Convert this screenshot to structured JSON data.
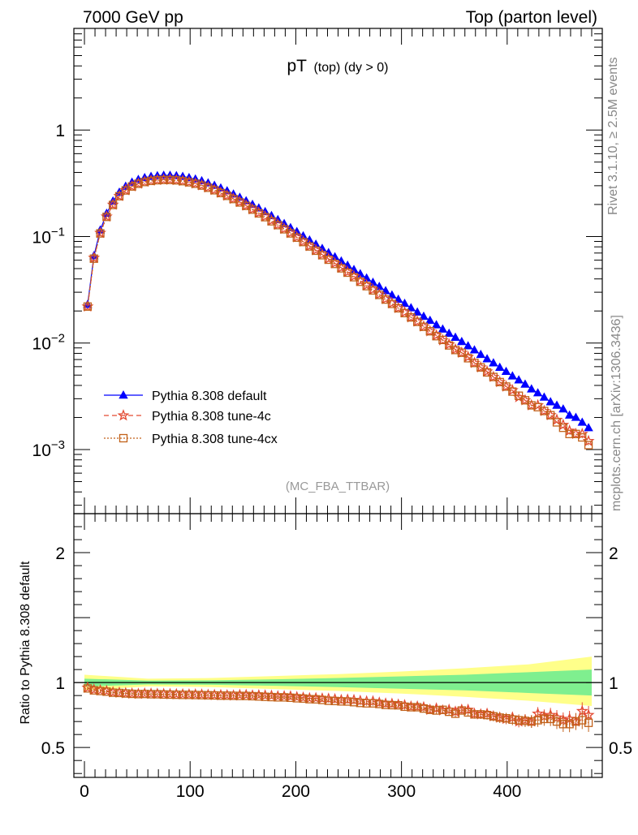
{
  "header": {
    "left": "7000 GeV pp",
    "right": "Top (parton level)"
  },
  "side_labels": {
    "rivet": "Rivet 3.1.10, ≥ 2.5M events",
    "mcplots": "mcplots.cern.ch [arXiv:1306.3436]"
  },
  "colors": {
    "default": "#0000ff",
    "tune4c": "#e34a33",
    "tune4cx": "#c2611a",
    "band_inner": "#7fef8f",
    "band_outer": "#ffff8a"
  },
  "chart_data": [
    {
      "type": "line",
      "title": "pT",
      "title_sub": "(top) (dy > 0)",
      "analysis_label": "(MC_FBA_TTBAR)",
      "yscale": "log",
      "xlim": [
        -10,
        490
      ],
      "ylim": [
        0.00025,
        9
      ],
      "y_ticks": [
        0.001,
        0.01,
        0.1,
        1
      ],
      "y_tick_labels": [
        {
          "base": "10",
          "exp": "−3"
        },
        {
          "base": "10",
          "exp": "−2"
        },
        {
          "base": "10",
          "exp": "−1"
        },
        {
          "base": "1",
          "exp": ""
        }
      ],
      "legend": [
        {
          "label": "Pythia 8.308 default",
          "series": "default"
        },
        {
          "label": "Pythia 8.308 tune-4c",
          "series": "tune4c"
        },
        {
          "label": "Pythia 8.308 tune-4cx",
          "series": "tune4cx"
        }
      ],
      "legend_position": "bottom-left",
      "x": [
        3,
        9,
        15,
        21,
        27,
        33,
        39,
        45,
        51,
        57,
        63,
        69,
        75,
        81,
        87,
        93,
        99,
        105,
        111,
        117,
        123,
        129,
        135,
        141,
        147,
        153,
        159,
        165,
        171,
        177,
        183,
        189,
        195,
        201,
        207,
        213,
        219,
        225,
        231,
        237,
        243,
        249,
        255,
        261,
        267,
        273,
        279,
        285,
        291,
        297,
        303,
        309,
        315,
        321,
        327,
        333,
        339,
        345,
        351,
        357,
        363,
        369,
        375,
        381,
        387,
        393,
        399,
        405,
        411,
        417,
        423,
        429,
        435,
        441,
        447,
        453,
        459,
        465,
        471,
        477
      ],
      "series": [
        {
          "key": "default",
          "name": "Pythia 8.308 default",
          "values": [
            0.023,
            0.066,
            0.115,
            0.165,
            0.215,
            0.26,
            0.296,
            0.323,
            0.343,
            0.357,
            0.366,
            0.372,
            0.375,
            0.375,
            0.372,
            0.366,
            0.357,
            0.346,
            0.333,
            0.318,
            0.302,
            0.285,
            0.268,
            0.25,
            0.233,
            0.216,
            0.2,
            0.185,
            0.171,
            0.157,
            0.144,
            0.132,
            0.121,
            0.111,
            0.1012,
            0.0925,
            0.0845,
            0.0772,
            0.0705,
            0.0644,
            0.0588,
            0.0536,
            0.0489,
            0.0446,
            0.0407,
            0.0371,
            0.0339,
            0.0309,
            0.0282,
            0.0257,
            0.0235,
            0.0214,
            0.0195,
            0.0178,
            0.0163,
            0.0148,
            0.0135,
            0.0123,
            0.0113,
            0.0103,
            0.0094,
            0.0086,
            0.0078,
            0.0071,
            0.0065,
            0.0059,
            0.0054,
            0.0049,
            0.0045,
            0.0041,
            0.0037,
            0.0034,
            0.0031,
            0.0028,
            0.0026,
            0.0024,
            0.0021,
            0.002,
            0.0018,
            0.0016
          ]
        },
        {
          "key": "tune4c",
          "name": "Pythia 8.308 tune-4c",
          "values": [
            0.022,
            0.063,
            0.108,
            0.154,
            0.199,
            0.24,
            0.272,
            0.296,
            0.314,
            0.327,
            0.335,
            0.34,
            0.342,
            0.342,
            0.339,
            0.333,
            0.325,
            0.315,
            0.303,
            0.289,
            0.274,
            0.258,
            0.242,
            0.226,
            0.211,
            0.195,
            0.18,
            0.167,
            0.154,
            0.141,
            0.129,
            0.118,
            0.108,
            0.0985,
            0.0895,
            0.0813,
            0.0744,
            0.0677,
            0.0617,
            0.0561,
            0.0509,
            0.0465,
            0.0423,
            0.0383,
            0.0348,
            0.0317,
            0.0286,
            0.0259,
            0.0236,
            0.0213,
            0.0194,
            0.0174,
            0.0159,
            0.0143,
            0.0129,
            0.0118,
            0.0106,
            0.0097,
            0.0087,
            0.0081,
            0.0074,
            0.0065,
            0.0059,
            0.0054,
            0.0048,
            0.0043,
            0.0039,
            0.0036,
            0.0031,
            0.0029,
            0.0026,
            0.0026,
            0.0023,
            0.0021,
            0.0019,
            0.0017,
            0.0015,
            0.0014,
            0.0014,
            0.0012
          ]
        },
        {
          "key": "tune4cx",
          "name": "Pythia 8.308 tune-4cx",
          "values": [
            0.022,
            0.062,
            0.107,
            0.153,
            0.198,
            0.239,
            0.271,
            0.295,
            0.313,
            0.325,
            0.333,
            0.338,
            0.34,
            0.34,
            0.337,
            0.331,
            0.323,
            0.313,
            0.301,
            0.287,
            0.272,
            0.256,
            0.241,
            0.225,
            0.209,
            0.194,
            0.179,
            0.165,
            0.152,
            0.139,
            0.128,
            0.117,
            0.107,
            0.0976,
            0.0888,
            0.0807,
            0.0736,
            0.0668,
            0.0606,
            0.0553,
            0.0503,
            0.0458,
            0.0415,
            0.0376,
            0.0342,
            0.0312,
            0.0283,
            0.0256,
            0.0233,
            0.0212,
            0.0191,
            0.0174,
            0.0158,
            0.0142,
            0.0129,
            0.0116,
            0.0107,
            0.0095,
            0.0086,
            0.0081,
            0.0072,
            0.0065,
            0.0059,
            0.0053,
            0.0048,
            0.0043,
            0.0039,
            0.0035,
            0.0032,
            0.0029,
            0.0026,
            0.0025,
            0.0023,
            0.0021,
            0.0018,
            0.0016,
            0.0014,
            0.0014,
            0.0013,
            0.0011
          ]
        }
      ]
    },
    {
      "type": "line",
      "ylabel": "Ratio to Pythia 8.308 default",
      "xlim": [
        -10,
        490
      ],
      "ylim": [
        0.27,
        2.3
      ],
      "x_ticks": [
        0,
        100,
        200,
        300,
        400
      ],
      "y_ticks": [
        0.5,
        1,
        2
      ],
      "y_tick_labels": [
        "0.5",
        "1",
        "2"
      ],
      "reference_line": 1,
      "x": [
        3,
        9,
        15,
        21,
        27,
        33,
        39,
        45,
        51,
        57,
        63,
        69,
        75,
        81,
        87,
        93,
        99,
        105,
        111,
        117,
        123,
        129,
        135,
        141,
        147,
        153,
        159,
        165,
        171,
        177,
        183,
        189,
        195,
        201,
        207,
        213,
        219,
        225,
        231,
        237,
        243,
        249,
        255,
        261,
        267,
        273,
        279,
        285,
        291,
        297,
        303,
        309,
        315,
        321,
        327,
        333,
        339,
        345,
        351,
        357,
        363,
        369,
        375,
        381,
        387,
        393,
        399,
        405,
        411,
        417,
        423,
        429,
        435,
        441,
        447,
        453,
        459,
        465,
        471,
        477
      ],
      "band": {
        "x": [
          0,
          60,
          120,
          180,
          240,
          300,
          360,
          420,
          480
        ],
        "inner_low": [
          0.97,
          0.985,
          0.983,
          0.975,
          0.965,
          0.952,
          0.94,
          0.92,
          0.9
        ],
        "inner_high": [
          1.03,
          1.015,
          1.017,
          1.025,
          1.035,
          1.048,
          1.06,
          1.08,
          1.1
        ],
        "outer_low": [
          0.94,
          0.97,
          0.965,
          0.95,
          0.935,
          0.915,
          0.89,
          0.86,
          0.82
        ],
        "outer_high": [
          1.06,
          1.03,
          1.035,
          1.05,
          1.065,
          1.085,
          1.11,
          1.14,
          1.2
        ]
      },
      "series": [
        {
          "key": "tune4c",
          "name": "Pythia 8.308 tune-4c",
          "values": [
            0.96,
            0.945,
            0.94,
            0.935,
            0.925,
            0.922,
            0.918,
            0.915,
            0.913,
            0.915,
            0.914,
            0.913,
            0.912,
            0.911,
            0.91,
            0.909,
            0.908,
            0.908,
            0.907,
            0.905,
            0.904,
            0.903,
            0.902,
            0.9,
            0.904,
            0.904,
            0.9,
            0.902,
            0.9,
            0.898,
            0.894,
            0.894,
            0.893,
            0.888,
            0.884,
            0.879,
            0.88,
            0.877,
            0.875,
            0.871,
            0.865,
            0.868,
            0.865,
            0.859,
            0.855,
            0.855,
            0.845,
            0.838,
            0.836,
            0.83,
            0.825,
            0.815,
            0.815,
            0.81,
            0.79,
            0.8,
            0.785,
            0.79,
            0.775,
            0.79,
            0.79,
            0.76,
            0.755,
            0.76,
            0.74,
            0.73,
            0.72,
            0.73,
            0.7,
            0.71,
            0.7,
            0.76,
            0.74,
            0.75,
            0.73,
            0.71,
            0.72,
            0.7,
            0.78,
            0.75
          ],
          "errors": [
            0.01,
            0.01,
            0.01,
            0.01,
            0.01,
            0.01,
            0.01,
            0.01,
            0.01,
            0.01,
            0.01,
            0.01,
            0.01,
            0.01,
            0.01,
            0.01,
            0.01,
            0.01,
            0.01,
            0.01,
            0.01,
            0.01,
            0.01,
            0.012,
            0.012,
            0.012,
            0.012,
            0.012,
            0.012,
            0.012,
            0.014,
            0.014,
            0.014,
            0.014,
            0.014,
            0.015,
            0.015,
            0.015,
            0.016,
            0.016,
            0.017,
            0.017,
            0.018,
            0.018,
            0.019,
            0.019,
            0.02,
            0.02,
            0.021,
            0.021,
            0.022,
            0.023,
            0.024,
            0.025,
            0.026,
            0.027,
            0.028,
            0.029,
            0.03,
            0.031,
            0.032,
            0.033,
            0.035,
            0.036,
            0.038,
            0.04,
            0.041,
            0.043,
            0.045,
            0.047,
            0.049,
            0.051,
            0.053,
            0.055,
            0.058,
            0.06,
            0.062,
            0.065,
            0.068,
            0.07
          ]
        },
        {
          "key": "tune4cx",
          "name": "Pythia 8.308 tune-4cx",
          "values": [
            0.955,
            0.94,
            0.935,
            0.93,
            0.922,
            0.92,
            0.916,
            0.913,
            0.911,
            0.912,
            0.91,
            0.91,
            0.908,
            0.907,
            0.906,
            0.905,
            0.905,
            0.904,
            0.903,
            0.902,
            0.901,
            0.899,
            0.899,
            0.898,
            0.897,
            0.897,
            0.895,
            0.893,
            0.89,
            0.888,
            0.886,
            0.886,
            0.883,
            0.879,
            0.877,
            0.872,
            0.871,
            0.866,
            0.86,
            0.858,
            0.855,
            0.854,
            0.849,
            0.843,
            0.84,
            0.84,
            0.835,
            0.828,
            0.826,
            0.825,
            0.814,
            0.81,
            0.81,
            0.8,
            0.79,
            0.785,
            0.79,
            0.775,
            0.76,
            0.785,
            0.77,
            0.755,
            0.755,
            0.75,
            0.74,
            0.73,
            0.725,
            0.715,
            0.71,
            0.705,
            0.7,
            0.71,
            0.72,
            0.72,
            0.7,
            0.68,
            0.68,
            0.7,
            0.71,
            0.69
          ],
          "errors": [
            0.01,
            0.01,
            0.01,
            0.01,
            0.01,
            0.01,
            0.01,
            0.01,
            0.01,
            0.01,
            0.01,
            0.01,
            0.01,
            0.01,
            0.01,
            0.01,
            0.01,
            0.01,
            0.01,
            0.01,
            0.01,
            0.01,
            0.01,
            0.012,
            0.012,
            0.012,
            0.012,
            0.012,
            0.012,
            0.012,
            0.014,
            0.014,
            0.014,
            0.014,
            0.014,
            0.015,
            0.015,
            0.015,
            0.016,
            0.016,
            0.017,
            0.017,
            0.018,
            0.018,
            0.019,
            0.019,
            0.02,
            0.02,
            0.021,
            0.021,
            0.022,
            0.023,
            0.024,
            0.025,
            0.026,
            0.027,
            0.028,
            0.029,
            0.03,
            0.031,
            0.032,
            0.033,
            0.035,
            0.036,
            0.038,
            0.04,
            0.041,
            0.043,
            0.045,
            0.047,
            0.049,
            0.051,
            0.053,
            0.055,
            0.058,
            0.06,
            0.062,
            0.065,
            0.068,
            0.07
          ]
        }
      ]
    }
  ]
}
